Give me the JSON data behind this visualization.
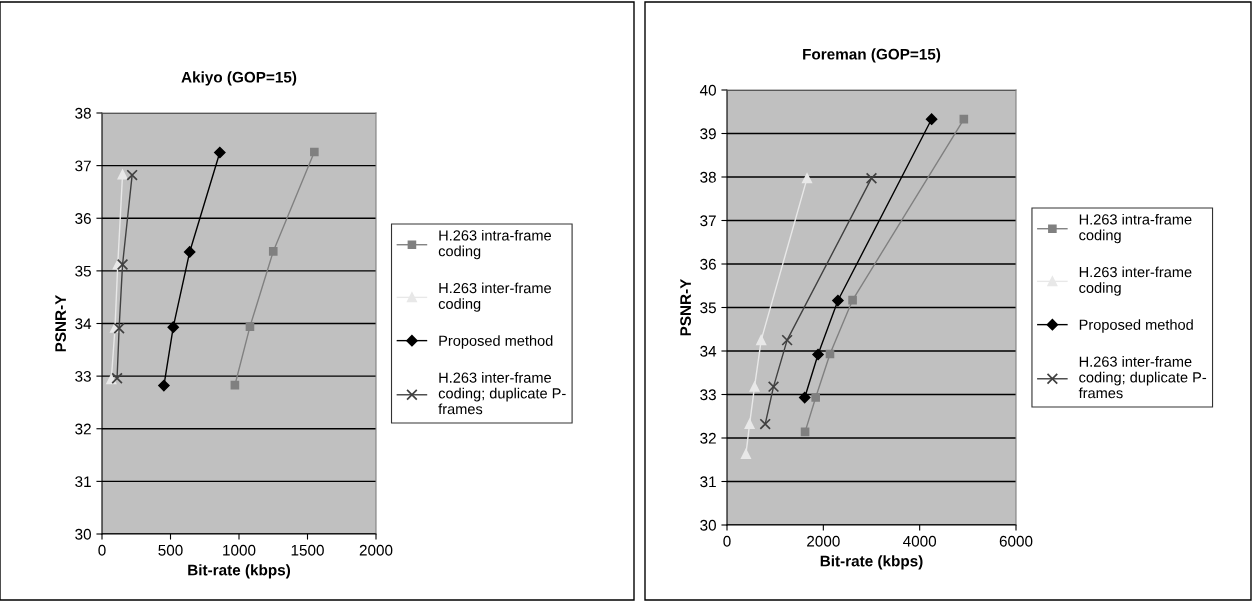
{
  "chart_data": [
    {
      "type": "line",
      "title": "Akiyo (GOP=15)",
      "xlabel": "Bit-rate (kbps)",
      "ylabel": "PSNR-Y",
      "xlim": [
        0,
        2000
      ],
      "xticks": [
        0,
        500,
        1000,
        1500,
        2000
      ],
      "ylim": [
        30,
        38
      ],
      "yticks": [
        30,
        31,
        32,
        33,
        34,
        35,
        36,
        37,
        38
      ],
      "grid": "y",
      "legend": "right",
      "series": [
        {
          "name": "H.263 intra-frame\ncoding",
          "color": "#808080",
          "marker": "square",
          "x": [
            970,
            1080,
            1250,
            1550
          ],
          "values": [
            32.83,
            33.94,
            35.37,
            37.26
          ]
        },
        {
          "name": "H.263 inter-frame\ncoding",
          "color": "#e8e8e8",
          "marker": "triangle",
          "x": [
            68,
            95,
            115,
            150
          ],
          "values": [
            32.94,
            33.92,
            35.12,
            36.83
          ]
        },
        {
          "name": "Proposed method",
          "color": "#000000",
          "marker": "diamond",
          "x": [
            452,
            520,
            640,
            860
          ],
          "values": [
            32.82,
            33.93,
            35.36,
            37.25
          ]
        },
        {
          "name": "H.263 inter-frame\ncoding; duplicate P-\nframes",
          "color": "#404040",
          "marker": "cross",
          "x": [
            110,
            125,
            150,
            220
          ],
          "values": [
            32.96,
            33.91,
            35.12,
            36.82
          ]
        }
      ]
    },
    {
      "type": "line",
      "title": "Foreman (GOP=15)",
      "xlabel": "Bit-rate (kbps)",
      "ylabel": "PSNR-Y",
      "xlim": [
        0,
        6000
      ],
      "xticks": [
        0,
        2000,
        4000,
        6000
      ],
      "ylim": [
        30,
        40
      ],
      "yticks": [
        30,
        31,
        32,
        33,
        34,
        35,
        36,
        37,
        38,
        39,
        40
      ],
      "grid": "y",
      "legend": "right",
      "series": [
        {
          "name": "H.263 intra-frame\ncoding",
          "color": "#808080",
          "marker": "square",
          "x": [
            1621,
            1841,
            2138,
            2607,
            4917
          ],
          "values": [
            32.14,
            32.93,
            33.93,
            35.17,
            39.33
          ]
        },
        {
          "name": "H.263 inter-frame\ncoding",
          "color": "#e8e8e8",
          "marker": "triangle",
          "x": [
            393,
            469,
            572,
            710,
            1662
          ],
          "values": [
            31.63,
            32.32,
            33.18,
            34.25,
            37.97
          ]
        },
        {
          "name": "Proposed method",
          "color": "#000000",
          "marker": "diamond",
          "x": [
            1614,
            1890,
            2303,
            4248
          ],
          "values": [
            32.93,
            33.92,
            35.16,
            39.33
          ]
        },
        {
          "name": "H.263 inter-frame\ncoding; duplicate P-\nframes",
          "color": "#404040",
          "marker": "cross",
          "x": [
            793,
            966,
            1248,
            3000
          ],
          "values": [
            32.32,
            33.18,
            34.25,
            37.97
          ]
        }
      ]
    }
  ]
}
